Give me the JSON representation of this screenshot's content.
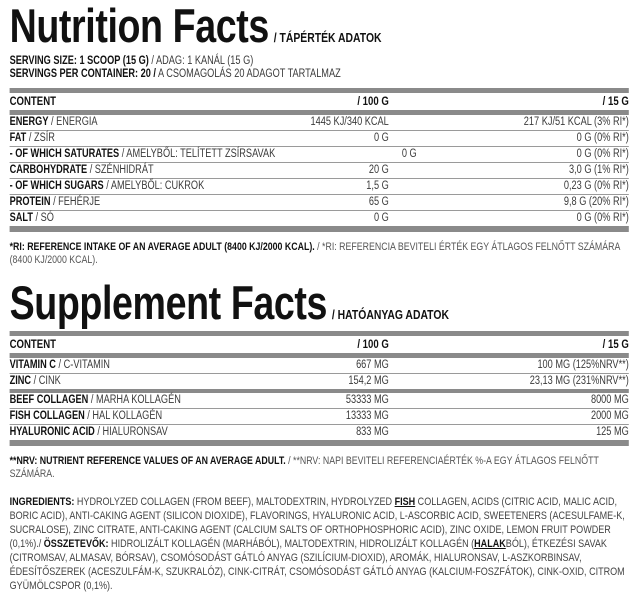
{
  "nutrition": {
    "title": "Nutrition Facts",
    "subtitle": "/ TÁPÉRTÉK ADATOK",
    "serving_size_label": "SERVING SIZE: 1 SCOOP (15 G)",
    "serving_size_hu": "/ ADAG: 1 KANÁL (15 G)",
    "servings_label": "SERVINGS PER CONTAINER: 20 /",
    "servings_hu": "A CSOMAGOLÁS 20 ADAGOT TARTALMAZ",
    "header": {
      "content": "CONTENT",
      "per100": "/ 100 G",
      "per15": "/ 15 G"
    },
    "rows": [
      {
        "en": "ENERGY",
        "hu": "/ ENERGIA",
        "per100": "1445 KJ/340 KCAL",
        "per15": "217 KJ/51 KCAL (3% RI*)"
      },
      {
        "en": "FAT",
        "hu": "/ ZSÍR",
        "per100": "0 G",
        "per15": "0 G (0% RI*)"
      },
      {
        "en": "- OF WHICH SATURATES",
        "hu": "/  AMELYBŐL: TELÍTETT ZSÍRSAVAK",
        "per100": "0 G",
        "per15": "0 G (0% RI*)"
      },
      {
        "en": "CARBOHYDRATE",
        "hu": "/ SZÉNHIDRÁT",
        "per100": "20 G",
        "per15": "3,0 G (1% RI*)"
      },
      {
        "en": "- OF WHICH SUGARS",
        "hu": "/ AMELYBŐL: CUKROK",
        "per100": "1,5 G",
        "per15": "0,23 G (0% RI*)"
      },
      {
        "en": "PROTEIN",
        "hu": "/ FEHÉRJE",
        "per100": "65 G",
        "per15": "9,8 G (20% RI*)"
      },
      {
        "en": "SALT",
        "hu": "/ SÓ",
        "per100": "0 G",
        "per15": "0 G (0% RI*)"
      }
    ],
    "footnote_en": "*RI: REFERENCE INTAKE OF AN AVERAGE ADULT (8400 KJ/2000 KCAL).",
    "footnote_hu": "/ *RI: REFERENCIA BEVITELI ÉRTÉK EGY ÁTLAGOS FELNŐTT SZÁMÁRA (8400 KJ/2000 KCAL)."
  },
  "supplement": {
    "title": "Supplement Facts",
    "subtitle": "/ HATÓANYAG ADATOK",
    "header": {
      "content": "CONTENT",
      "per100": "/ 100 G",
      "per15": "/ 15 G"
    },
    "rows_a": [
      {
        "en": "VITAMIN C",
        "hu": "/ C-VITAMIN",
        "per100": "667 MG",
        "per15": "100 MG (125%NRV**)"
      },
      {
        "en": "ZINC",
        "hu": "/ CINK",
        "per100": "154,2 MG",
        "per15": "23,13 MG (231%NRV**)"
      }
    ],
    "rows_b": [
      {
        "en": "BEEF COLLAGEN",
        "hu": "/ MARHA KOLLAGÉN",
        "per100": "53333 MG",
        "per15": "8000 MG"
      },
      {
        "en": "FISH COLLAGEN",
        "hu": "/ HAL KOLLAGÉN",
        "per100": "13333 MG",
        "per15": "2000 MG"
      },
      {
        "en": "HYALURONIC ACID",
        "hu": "/ HIALURONSAV",
        "per100": "833 MG",
        "per15": "125 MG"
      }
    ],
    "footnote_en": "**NRV: NUTRIENT REFERENCE VALUES OF AN AVERAGE ADULT.",
    "footnote_hu": "/ **NRV: NAPI BEVITELI REFERENCIAÉRTÉK %-A EGY ÁTLAGOS FELNŐTT SZÁMÁRA."
  },
  "ingredients": {
    "label_en": "INGREDIENTS:",
    "text_en_1": " HYDROLYZED COLLAGEN (FROM BEEF), MALTODEXTRIN, HYDROLYZED ",
    "allergen_en": "FISH",
    "text_en_2": " COLLAGEN, ACIDS (CITRIC ACID, MALIC ACID, BORIC ACID), ANTI-CAKING AGENT (SILICON DIOXIDE), FLAVORINGS,  HYALURONIC ACID, L-ASCORBIC ACID, SWEETENERS (ACESULFAME-K, SUCRALOSE), ZINC CITRATE, ANTI-CAKING AGENT (CALCIUM SALTS OF ORTHOPHOSPHORIC ACID), ZINC OXIDE, LEMON FRUIT POWDER (0,1%)./ ",
    "label_hu": "ÖSSZETEVŐK:",
    "text_hu_1": " HIDROLIZÁLT KOLLAGÉN (MARHÁBÓL), MALTODEXTRIN, HIDROLIZÁLT KOLLAGÉN (",
    "allergen_hu": "HALAK",
    "text_hu_2": "BÓL), ÉTKEZÉSI SAVAK (CITROMSAV, ALMASAV, BÓRSAV), CSOMÓSODÁST GÁTLÓ ANYAG (SZILÍCIUM-DIOXID), AROMÁK, HIALURONSAV, L-ASZKORBINSAV, ÉDESÍTŐSZEREK (ACESZULFÁM-K, SZUKRALÓZ), CINK-CITRÁT, CSOMÓSODÁST GÁTLÓ ANYAG (KALCIUM-FOSZFÁTOK), CINK-OXID, CITROM GYÜMÖLCSPOR (0,1%)."
  }
}
